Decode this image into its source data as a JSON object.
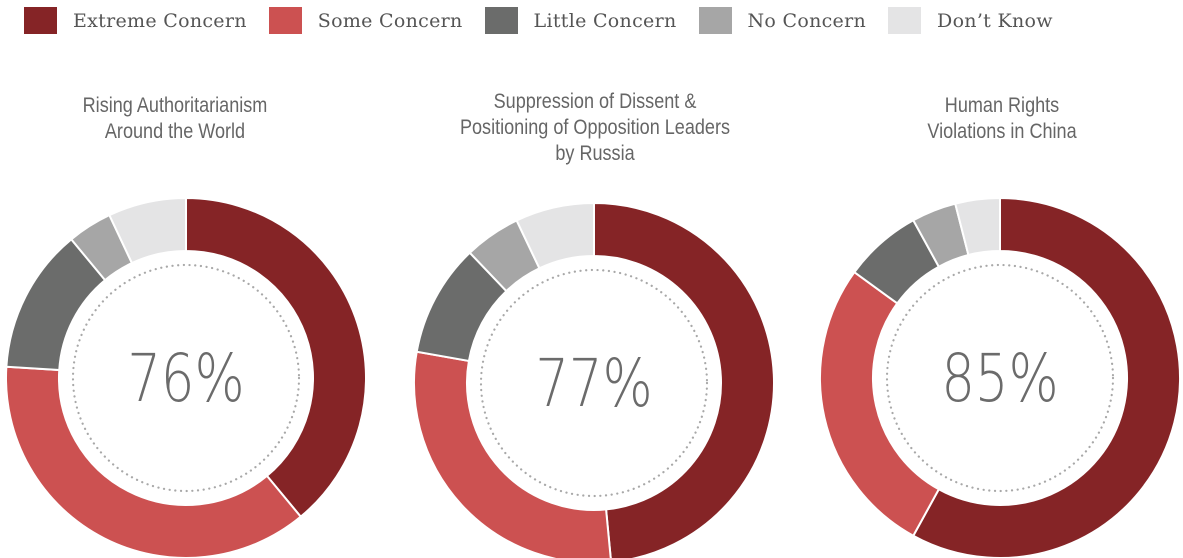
{
  "colors": {
    "extreme": "#852426",
    "some": "#cc5151",
    "little": "#6b6c6b",
    "no": "#a6a6a6",
    "dont_know": "#e4e4e5",
    "center_text": "#6b6b6b",
    "dots": "#a8a8a8"
  },
  "legend": [
    {
      "label": "Extreme Concern",
      "color_key": "extreme"
    },
    {
      "label": "Some Concern",
      "color_key": "some"
    },
    {
      "label": "Little Concern",
      "color_key": "little"
    },
    {
      "label": "No Concern",
      "color_key": "no"
    },
    {
      "label": "Don’t Know",
      "color_key": "dont_know"
    }
  ],
  "chart_data": [
    {
      "type": "pie",
      "title_lines": [
        "Rising Authoritarianism",
        "Around the World"
      ],
      "center_label": "76%",
      "categories": [
        "Extreme Concern",
        "Some Concern",
        "Little Concern",
        "No Concern",
        "Don’t Know"
      ],
      "values": [
        39,
        37,
        13,
        4,
        7
      ]
    },
    {
      "type": "pie",
      "title_lines": [
        "Suppression of Dissent &",
        "Positioning of Opposition Leaders",
        "by Russia"
      ],
      "center_label": "77%",
      "categories": [
        "Extreme Concern",
        "Some Concern",
        "Little Concern",
        "No Concern",
        "Don’t Know"
      ],
      "values": [
        48,
        29,
        10,
        5,
        7
      ]
    },
    {
      "type": "pie",
      "title_lines": [
        "Human Rights",
        "Violations in China"
      ],
      "center_label": "85%",
      "categories": [
        "Extreme Concern",
        "Some Concern",
        "Little Concern",
        "No Concern",
        "Don’t Know"
      ],
      "values": [
        58,
        27,
        7,
        4,
        4
      ]
    }
  ]
}
